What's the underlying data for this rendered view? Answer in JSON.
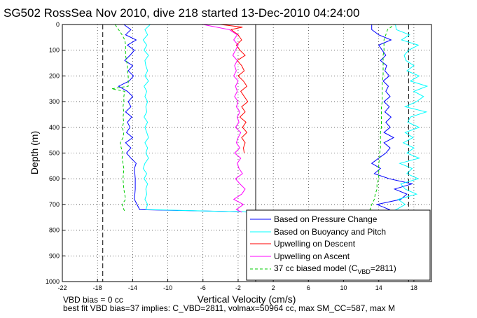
{
  "chart_data": {
    "type": "line",
    "title": "SG502 RossSea Nov 2010, dive 218 started 13-Dec-2010 04:24:00",
    "xlabel": "Vertical Velocity (cm/s)",
    "ylabel": "Depth (m)",
    "xlim": [
      -22,
      20
    ],
    "ylim": [
      1000,
      0
    ],
    "xticks": [
      -22,
      -18,
      -14,
      -10,
      -6,
      -2,
      2,
      6,
      10,
      14,
      18
    ],
    "yticks": [
      0,
      100,
      200,
      300,
      400,
      500,
      600,
      700,
      800,
      900,
      1000
    ],
    "grid": true,
    "legend_position": "bottom-right",
    "legend": {
      "pressure": "Based on Pressure Change",
      "buoyancy": "Based on Buoyancy and Pitch",
      "descent": "Upwelling on Descent",
      "ascent": "Upwelling on Ascent",
      "model_prefix": "37 cc biased model (C",
      "model_sub": "VBD",
      "model_suffix": "=2811)"
    },
    "colors": {
      "pressure": "#0000ff",
      "buoyancy": "#00ffff",
      "descent": "#ff0000",
      "ascent": "#ff00ff",
      "model": "#00cc00"
    },
    "reference_lines_x": [
      -17.4,
      17.4
    ],
    "vertical_reference_x": 0,
    "series": [
      {
        "name": "Based on Pressure Change",
        "color": "#0000ff",
        "segments": [
          {
            "depth": [
              0,
              20,
              40,
              60,
              80,
              100,
              120,
              140,
              160,
              180,
              200,
              220,
              240,
              260,
              280,
              300,
              320,
              340,
              360,
              380,
              400,
              420,
              440,
              460,
              480,
              500,
              520,
              540,
              560,
              600,
              640,
              680,
              720,
              730
            ],
            "x": [
              -15.0,
              -14.2,
              -14.8,
              -13.6,
              -14.6,
              -13.8,
              -14.3,
              -14.9,
              -14.0,
              -14.5,
              -13.9,
              -14.4,
              -15.6,
              -14.6,
              -14.0,
              -14.5,
              -14.2,
              -14.8,
              -14.1,
              -14.6,
              -14.3,
              -14.7,
              -14.0,
              -14.8,
              -14.2,
              -14.7,
              -14.2,
              -13.6,
              -13.8,
              -13.7,
              -13.7,
              -13.8,
              -13.2,
              0
            ]
          },
          {
            "depth": [
              730,
              720,
              700,
              680,
              660,
              640,
              620,
              600,
              580,
              560,
              540,
              520,
              500,
              480,
              460,
              440,
              420,
              400,
              380,
              360,
              340,
              320,
              300,
              280,
              260,
              240,
              220,
              200,
              180,
              160,
              140,
              120,
              100,
              80,
              60,
              40,
              20,
              0
            ],
            "x": [
              14.2,
              15.2,
              13.8,
              16.5,
              17.2,
              15.8,
              17.8,
              15.2,
              13.5,
              14.2,
              13.2,
              14.0,
              14.8,
              15.3,
              14.6,
              15.7,
              14.6,
              15.3,
              14.8,
              15.4,
              14.7,
              15.2,
              14.6,
              15.3,
              14.8,
              15.1,
              14.5,
              15.2,
              14.7,
              14.9,
              14.2,
              14.8,
              14.4,
              14.0,
              15.4,
              14.0,
              13.2,
              13.2
            ]
          }
        ]
      },
      {
        "name": "Based on Buoyancy and Pitch",
        "color": "#00ffff",
        "segments": [
          {
            "depth": [
              0,
              20,
              40,
              60,
              80,
              100,
              120,
              140,
              160,
              180,
              200,
              220,
              240,
              260,
              280,
              300,
              320,
              340,
              360,
              380,
              400,
              420,
              440,
              460,
              480,
              500,
              520,
              540,
              560,
              580,
              600,
              620,
              640,
              660,
              680,
              700,
              720,
              730
            ],
            "x": [
              -12.0,
              -12.6,
              -12.3,
              -12.8,
              -12.4,
              -12.7,
              -12.2,
              -12.6,
              -12.5,
              -12.3,
              -12.6,
              -12.2,
              -12.7,
              -12.4,
              -12.6,
              -12.3,
              -12.5,
              -12.4,
              -12.7,
              -12.3,
              -12.6,
              -12.4,
              -12.2,
              -12.6,
              -12.3,
              -12.5,
              -12.2,
              -12.6,
              -12.8,
              -12.4,
              -12.7,
              -12.3,
              -12.5,
              -12.4,
              -12.6,
              -12.3,
              -12.5,
              0
            ]
          },
          {
            "depth": [
              730,
              720,
              700,
              680,
              660,
              640,
              620,
              600,
              580,
              560,
              540,
              520,
              500,
              480,
              460,
              440,
              420,
              400,
              380,
              360,
              340,
              320,
              300,
              280,
              260,
              240,
              220,
              200,
              180,
              160,
              140,
              120,
              100,
              80,
              60,
              40,
              20,
              0
            ],
            "x": [
              15.2,
              16.0,
              17.0,
              16.2,
              18.3,
              17.0,
              16.5,
              18.5,
              17.2,
              17.8,
              16.4,
              18.6,
              17.2,
              18.0,
              16.8,
              17.9,
              17.0,
              18.6,
              17.3,
              17.6,
              19.4,
              17.0,
              18.3,
              19.1,
              18.0,
              19.5,
              17.6,
              18.6,
              17.2,
              18.0,
              17.1,
              16.9,
              17.4,
              18.5,
              16.6,
              17.5,
              16.0,
              15.9
            ]
          }
        ]
      },
      {
        "name": "Upwelling on Descent",
        "color": "#ff0000",
        "segments": [
          {
            "depth": [
              0,
              10,
              20,
              40,
              60,
              80,
              100,
              120,
              140,
              160,
              180,
              200,
              220,
              240,
              260,
              280,
              300,
              320,
              340,
              360,
              380,
              400,
              420,
              440,
              460,
              480,
              500
            ],
            "x": [
              -4.0,
              -1.5,
              -2.8,
              -2.0,
              -1.6,
              -2.2,
              -1.8,
              -1.2,
              -2.1,
              -1.6,
              -1.3,
              -2.0,
              -1.4,
              -1.0,
              -1.7,
              -1.3,
              -0.9,
              -1.6,
              -1.2,
              -1.8,
              -1.1,
              -1.5,
              -1.0,
              -1.6,
              -1.2,
              -1.4,
              -1.3
            ]
          }
        ]
      },
      {
        "name": "Upwelling on Ascent",
        "color": "#ff00ff",
        "segments": [
          {
            "depth": [
              730,
              720,
              700,
              680,
              660,
              640,
              620,
              600,
              580,
              560,
              540,
              520,
              500,
              480,
              460,
              440,
              420,
              400,
              380,
              360,
              340,
              320,
              300,
              280,
              260,
              240,
              220,
              200,
              180,
              160,
              140,
              120,
              100,
              80,
              60,
              40,
              20,
              0
            ],
            "x": [
              -1.6,
              -2.2,
              -1.4,
              -2.5,
              -1.6,
              -1.2,
              -1.8,
              -2.3,
              -1.5,
              -1.9,
              -2.1,
              -1.7,
              -2.4,
              -1.8,
              -2.2,
              -2.0,
              -1.7,
              -2.3,
              -1.9,
              -2.1,
              -1.8,
              -2.2,
              -2.0,
              -2.4,
              -2.1,
              -2.3,
              -2.0,
              -2.5,
              -2.2,
              -2.4,
              -2.1,
              -2.6,
              -2.3,
              -2.0,
              -2.5,
              -2.1,
              -3.0,
              -6.0
            ]
          }
        ]
      },
      {
        "name": "37 cc biased model (CVBD=2811)",
        "color": "#00cc00",
        "segments": [
          {
            "depth": [
              0,
              20,
              40,
              60,
              80,
              100,
              120,
              140,
              160,
              180,
              200,
              220,
              240,
              250,
              260,
              280,
              300,
              320,
              340,
              360,
              380,
              400,
              420,
              440,
              460,
              480,
              500,
              520,
              560,
              600,
              640,
              680,
              700,
              720,
              730
            ],
            "x": [
              -16.0,
              -15.6,
              -15.2,
              -14.9,
              -14.8,
              -14.8,
              -14.8,
              -14.7,
              -14.6,
              -14.6,
              -14.5,
              -14.5,
              -14.5,
              -16.4,
              -14.9,
              -15.0,
              -15.0,
              -15.1,
              -15.0,
              -15.1,
              -15.0,
              -15.2,
              -15.0,
              -15.1,
              -15.4,
              -15.3,
              -15.1,
              -15.2,
              -15.0,
              -15.1,
              -15.0,
              -14.8,
              -15.2,
              -15.0,
              -14.8
            ]
          },
          {
            "depth": [
              730,
              720,
              700,
              680,
              660,
              640,
              620,
              600,
              580,
              560,
              540,
              520,
              500,
              480,
              460,
              440,
              420,
              400,
              380,
              360,
              340,
              320,
              300,
              280,
              260,
              240,
              220,
              200,
              180,
              160,
              140,
              120,
              100,
              80,
              60,
              40,
              20,
              0
            ],
            "x": [
              13.6,
              13.0,
              13.2,
              13.5,
              13.6,
              13.8,
              13.8,
              14.0,
              14.0,
              14.0,
              14.0,
              14.1,
              14.1,
              14.2,
              14.2,
              14.2,
              14.2,
              14.3,
              14.3,
              14.3,
              14.3,
              14.3,
              14.4,
              14.4,
              14.4,
              14.4,
              14.4,
              14.5,
              14.5,
              14.5,
              14.5,
              14.5,
              14.6,
              14.6,
              14.6,
              14.8,
              15.0,
              15.8
            ]
          }
        ]
      }
    ],
    "annotations": {
      "bias_text": "VBD bias = 0 cc",
      "best_fit_text": "best fit VBD bias=37 implies: C_VBD=2811, volmax=50964 cc, max SM_CC=587, max M"
    }
  }
}
